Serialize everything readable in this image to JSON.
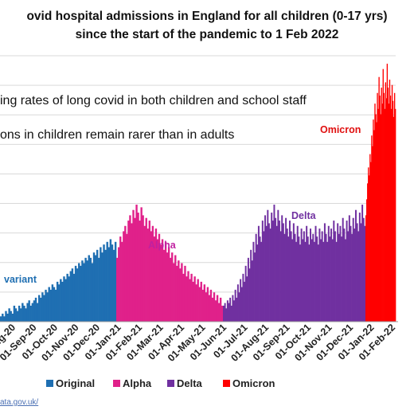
{
  "title_line1": "ovid hospital admissions in England for all children (0-17 yrs)",
  "title_line2": "since the start of the pandemic to 1 Feb 2022",
  "overlay_line1": "ing rates of long covid in both children and school staff",
  "overlay_line2": "ons in children remain rarer than in adults",
  "source_text": "ata.gov.uk/",
  "chart_data": {
    "type": "bar",
    "x_tick_labels": [
      "ug-20",
      "01-Sep-20",
      "01-Oct-20",
      "01-Nov-20",
      "01-Dec-20",
      "01-Jan-21",
      "01-Feb-21",
      "01-Mar-21",
      "01-Apr-21",
      "01-May-21",
      "01-Jun-21",
      "01-Jul-21",
      "01-Aug-21",
      "01-Sep-21",
      "01-Oct-21",
      "01-Nov-21",
      "01-Dec-21",
      "01-Jan-22",
      "01-Feb-22"
    ],
    "y_max": 100,
    "grid": true,
    "legend_position": "bottom",
    "series": [
      {
        "name": "Original",
        "color": "#1f6fb2",
        "label": "variant",
        "label_color": "#1f6fb2",
        "values": [
          2,
          3,
          2,
          4,
          3,
          5,
          4,
          3,
          6,
          5,
          4,
          6,
          5,
          7,
          6,
          5,
          7,
          8,
          6,
          7,
          8,
          9,
          7,
          10,
          9,
          11,
          10,
          12,
          11,
          13,
          12,
          14,
          13,
          12,
          15,
          14,
          16,
          15,
          17,
          16,
          18,
          17,
          19,
          20,
          18,
          21,
          20,
          22,
          21,
          23,
          22,
          24,
          23,
          25,
          24,
          22,
          26,
          25,
          27,
          24,
          28,
          26,
          29,
          27,
          30,
          28,
          31,
          29,
          27,
          30
        ]
      },
      {
        "name": "Alpha",
        "color": "#e0218a",
        "label": "Alpha",
        "label_color": "#c020a0",
        "values": [
          24,
          28,
          32,
          30,
          34,
          36,
          33,
          38,
          40,
          37,
          42,
          39,
          44,
          41,
          38,
          43,
          40,
          36,
          39,
          35,
          38,
          34,
          36,
          32,
          35,
          31,
          33,
          29,
          31,
          27,
          30,
          26,
          28,
          24,
          26,
          22,
          25,
          21,
          23,
          20,
          22,
          18,
          21,
          17,
          19,
          16,
          18,
          15,
          17,
          14,
          16,
          13,
          15,
          12,
          14,
          11,
          13,
          10,
          12,
          9,
          11,
          8,
          10,
          7,
          9,
          6
        ]
      },
      {
        "name": "Delta",
        "color": "#7030a0",
        "label": "Delta",
        "label_color": "#7030a0",
        "values": [
          6,
          7,
          5,
          8,
          7,
          9,
          6,
          10,
          8,
          12,
          9,
          14,
          11,
          16,
          13,
          18,
          15,
          21,
          17,
          24,
          20,
          27,
          23,
          30,
          26,
          33,
          29,
          36,
          32,
          30,
          38,
          34,
          40,
          36,
          42,
          37,
          35,
          41,
          38,
          44,
          39,
          36,
          42,
          38,
          34,
          40,
          37,
          33,
          39,
          35,
          32,
          38,
          34,
          31,
          37,
          33,
          30,
          36,
          32,
          29,
          35,
          31,
          34,
          30,
          36,
          32,
          29,
          35,
          31,
          33,
          30,
          36,
          32,
          29,
          35,
          31,
          34,
          30,
          37,
          33,
          30,
          36,
          32,
          35,
          31,
          38,
          34,
          30,
          37,
          33,
          36,
          32,
          39,
          35,
          31,
          38,
          34,
          40,
          36,
          33,
          39,
          35,
          42,
          37,
          34,
          41,
          37,
          44,
          39,
          36
        ]
      },
      {
        "name": "Omicron",
        "color": "#ff0000",
        "label": "Omicron",
        "label_color": "#e01010",
        "values": [
          40,
          46,
          52,
          58,
          55,
          63,
          60,
          70,
          66,
          76,
          72,
          82,
          78,
          75,
          86,
          80,
          92,
          85,
          78,
          88,
          82,
          95,
          86,
          80,
          90,
          84,
          97,
          88,
          82,
          91,
          85,
          80,
          89,
          83,
          77,
          86,
          80
        ]
      }
    ]
  }
}
